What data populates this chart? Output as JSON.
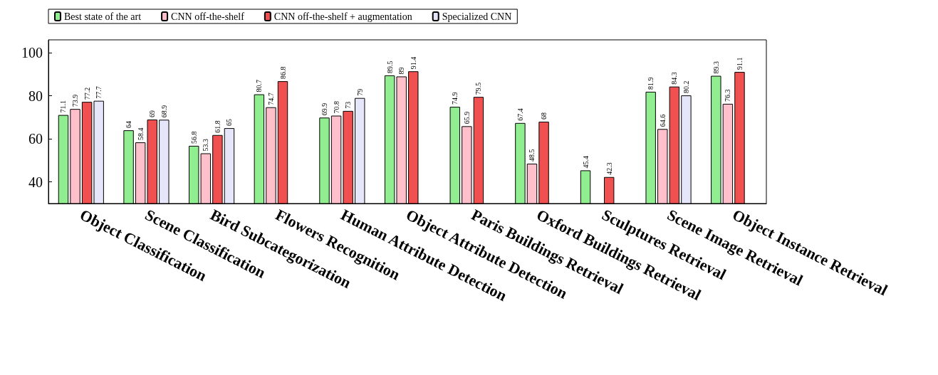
{
  "chart_data": {
    "type": "bar",
    "categories": [
      "Object Classification",
      "Scene Classification",
      "Bird Subcategorization",
      "Flowers Recognition",
      "Human Attribute Detection",
      "Object Attribute Detection",
      "Paris Buildings Retrieval",
      "Oxford Buildings Retrieval",
      "Sculptures Retrieval",
      "Scene Image Retrieval",
      "Object Instance Retrieval"
    ],
    "series": [
      {
        "name": "Best state of the art",
        "color": "#90ee90",
        "values": [
          71.1,
          64,
          56.8,
          80.7,
          69.9,
          89.5,
          74.9,
          67.4,
          45.4,
          81.9,
          89.3
        ]
      },
      {
        "name": "CNN off-the-shelf",
        "color": "#ffc0cb",
        "values": [
          73.9,
          58.4,
          53.3,
          74.7,
          70.8,
          89,
          65.9,
          48.5,
          null,
          64.6,
          76.3
        ]
      },
      {
        "name": "CNN off-the-shelf + augmentation",
        "color": "#f05050",
        "values": [
          77.2,
          69,
          61.8,
          86.8,
          73,
          91.4,
          79.5,
          68,
          42.3,
          84.3,
          91.1
        ]
      },
      {
        "name": "Specialized CNN",
        "color": "#e6e6fa",
        "values": [
          77.7,
          68.9,
          65,
          null,
          79,
          null,
          null,
          null,
          null,
          80.2,
          null
        ]
      }
    ],
    "ylim": [
      30,
      106
    ],
    "yticks": [
      40,
      60,
      80,
      100
    ],
    "data_labels": true,
    "legend": "top",
    "grid": false
  }
}
